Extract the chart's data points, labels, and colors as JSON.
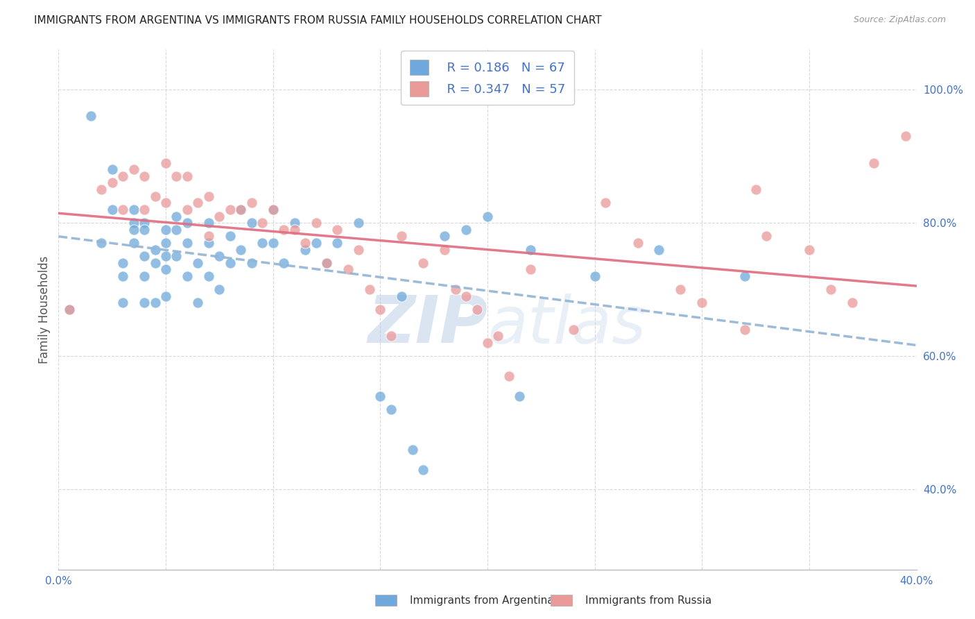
{
  "title": "IMMIGRANTS FROM ARGENTINA VS IMMIGRANTS FROM RUSSIA FAMILY HOUSEHOLDS CORRELATION CHART",
  "source": "Source: ZipAtlas.com",
  "ylabel": "Family Households",
  "xlim": [
    0.0,
    0.4
  ],
  "ylim": [
    0.28,
    1.06
  ],
  "x_tick_positions": [
    0.0,
    0.05,
    0.1,
    0.15,
    0.2,
    0.25,
    0.3,
    0.35,
    0.4
  ],
  "x_tick_labels": [
    "0.0%",
    "",
    "",
    "",
    "",
    "",
    "",
    "",
    "40.0%"
  ],
  "y_ticks_right": [
    0.4,
    0.6,
    0.8,
    1.0
  ],
  "y_tick_labels_right": [
    "40.0%",
    "60.0%",
    "80.0%",
    "100.0%"
  ],
  "legend_R1": "0.186",
  "legend_N1": "67",
  "legend_R2": "0.347",
  "legend_N2": "57",
  "blue_color": "#6fa8dc",
  "pink_color": "#ea9999",
  "trend_blue_color": "#92b4d4",
  "trend_pink_color": "#e06c7e",
  "text_blue": "#4472c4",
  "watermark_color": "#c8d8f0",
  "legend_label1": "Immigrants from Argentina",
  "legend_label2": "Immigrants from Russia",
  "argentina_x": [
    0.005,
    0.015,
    0.02,
    0.025,
    0.025,
    0.03,
    0.03,
    0.03,
    0.035,
    0.035,
    0.035,
    0.035,
    0.04,
    0.04,
    0.04,
    0.04,
    0.04,
    0.045,
    0.045,
    0.045,
    0.05,
    0.05,
    0.05,
    0.05,
    0.05,
    0.055,
    0.055,
    0.055,
    0.06,
    0.06,
    0.06,
    0.065,
    0.065,
    0.07,
    0.07,
    0.07,
    0.075,
    0.075,
    0.08,
    0.08,
    0.085,
    0.085,
    0.09,
    0.09,
    0.095,
    0.1,
    0.1,
    0.105,
    0.11,
    0.115,
    0.12,
    0.125,
    0.13,
    0.14,
    0.15,
    0.155,
    0.16,
    0.165,
    0.17,
    0.18,
    0.19,
    0.2,
    0.215,
    0.22,
    0.25,
    0.28,
    0.32
  ],
  "argentina_y": [
    0.67,
    0.96,
    0.77,
    0.88,
    0.82,
    0.74,
    0.72,
    0.68,
    0.82,
    0.8,
    0.79,
    0.77,
    0.8,
    0.79,
    0.75,
    0.72,
    0.68,
    0.76,
    0.74,
    0.68,
    0.79,
    0.77,
    0.75,
    0.73,
    0.69,
    0.81,
    0.79,
    0.75,
    0.8,
    0.77,
    0.72,
    0.74,
    0.68,
    0.8,
    0.77,
    0.72,
    0.75,
    0.7,
    0.78,
    0.74,
    0.82,
    0.76,
    0.8,
    0.74,
    0.77,
    0.82,
    0.77,
    0.74,
    0.8,
    0.76,
    0.77,
    0.74,
    0.77,
    0.8,
    0.54,
    0.52,
    0.69,
    0.46,
    0.43,
    0.78,
    0.79,
    0.81,
    0.54,
    0.76,
    0.72,
    0.76,
    0.72
  ],
  "russia_x": [
    0.005,
    0.02,
    0.025,
    0.03,
    0.03,
    0.035,
    0.04,
    0.04,
    0.045,
    0.05,
    0.05,
    0.055,
    0.06,
    0.06,
    0.065,
    0.07,
    0.07,
    0.075,
    0.08,
    0.085,
    0.09,
    0.095,
    0.1,
    0.105,
    0.11,
    0.115,
    0.12,
    0.125,
    0.13,
    0.135,
    0.14,
    0.145,
    0.15,
    0.155,
    0.16,
    0.17,
    0.18,
    0.185,
    0.19,
    0.195,
    0.2,
    0.205,
    0.21,
    0.22,
    0.24,
    0.255,
    0.27,
    0.29,
    0.3,
    0.32,
    0.325,
    0.33,
    0.35,
    0.36,
    0.37,
    0.38,
    0.395
  ],
  "russia_y": [
    0.67,
    0.85,
    0.86,
    0.87,
    0.82,
    0.88,
    0.87,
    0.82,
    0.84,
    0.89,
    0.83,
    0.87,
    0.87,
    0.82,
    0.83,
    0.84,
    0.78,
    0.81,
    0.82,
    0.82,
    0.83,
    0.8,
    0.82,
    0.79,
    0.79,
    0.77,
    0.8,
    0.74,
    0.79,
    0.73,
    0.76,
    0.7,
    0.67,
    0.63,
    0.78,
    0.74,
    0.76,
    0.7,
    0.69,
    0.67,
    0.62,
    0.63,
    0.57,
    0.73,
    0.64,
    0.83,
    0.77,
    0.7,
    0.68,
    0.64,
    0.85,
    0.78,
    0.76,
    0.7,
    0.68,
    0.89,
    0.93
  ]
}
